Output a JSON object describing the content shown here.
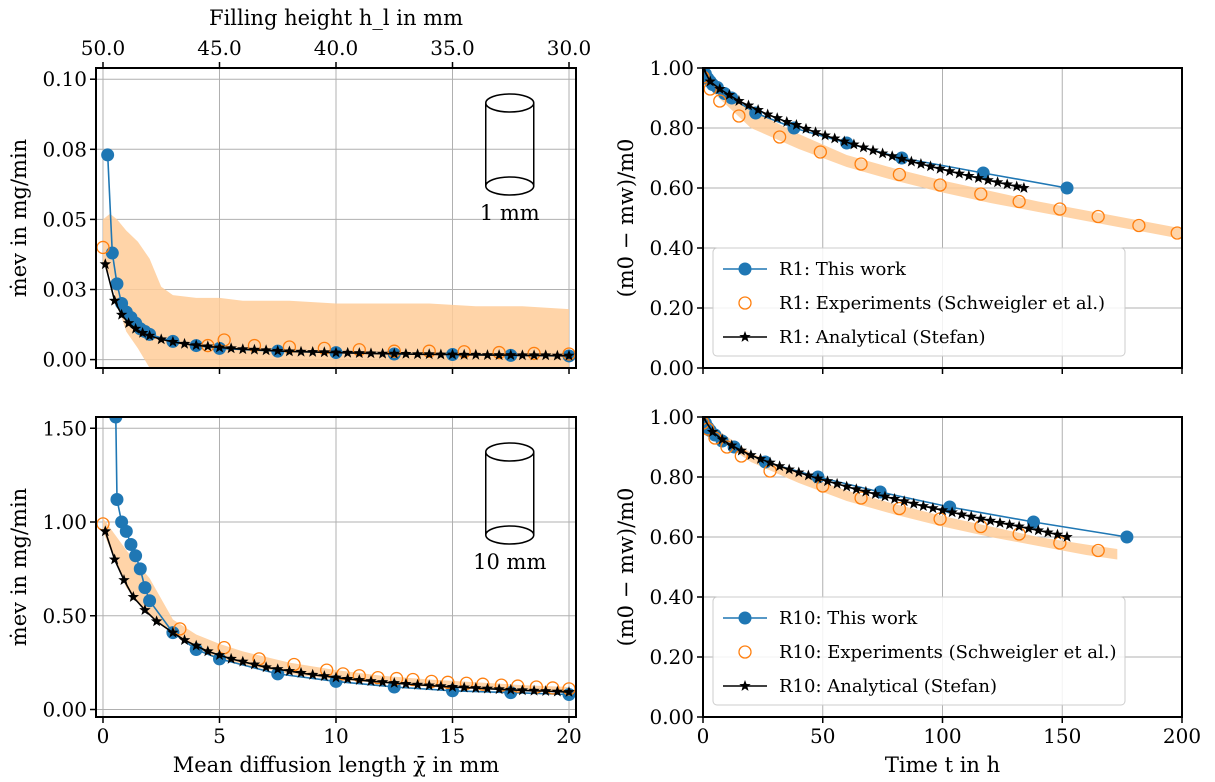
{
  "colors": {
    "this_work": "#1f77b4",
    "experiments": "#ff7f0e",
    "band": "#ffcc99",
    "analytical": "#000000"
  },
  "chart_data": [
    {
      "id": "top-left",
      "type": "line",
      "xlabel": "",
      "ylabel": "ṁev in mg/min",
      "top_axis_label": "Filling height h_l in mm",
      "top_ticks": [
        "50.0",
        "45.0",
        "40.0",
        "35.0",
        "30.0"
      ],
      "top_tick_x": [
        0,
        5,
        10,
        15,
        20
      ],
      "xlim": [
        -0.3,
        20.3
      ],
      "ylim": [
        -0.003,
        0.104
      ],
      "xticks": [
        0,
        5,
        10,
        15,
        20
      ],
      "xtick_labels": [
        "",
        "",
        "",
        "",
        ""
      ],
      "yticks": [
        0,
        0.025,
        0.05,
        0.075,
        0.1
      ],
      "ytick_labels": [
        "0.00",
        "0.03",
        "0.05",
        "0.08",
        "0.10"
      ],
      "inset_label": "1 mm",
      "series": [
        {
          "name": "This work",
          "style": "line-dot",
          "x": [
            0.2,
            0.4,
            0.6,
            0.8,
            1.0,
            1.2,
            1.4,
            1.6,
            1.8,
            2.0,
            3.0,
            4.0,
            5.0,
            7.5,
            10.0,
            12.5,
            15.0,
            17.5,
            20.0
          ],
          "y": [
            0.073,
            0.038,
            0.027,
            0.02,
            0.017,
            0.015,
            0.013,
            0.011,
            0.01,
            0.009,
            0.0065,
            0.005,
            0.004,
            0.003,
            0.0025,
            0.002,
            0.0018,
            0.0015,
            0.0013
          ]
        },
        {
          "name": "Experiments",
          "style": "open-circle",
          "x": [
            0.0,
            4.5,
            5.2,
            6.5,
            8.0,
            9.5,
            11.0,
            12.5,
            14.0,
            15.5,
            17.0,
            18.5,
            20.0
          ],
          "y": [
            0.04,
            0.005,
            0.007,
            0.005,
            0.0045,
            0.004,
            0.0035,
            0.003,
            0.003,
            0.0028,
            0.0025,
            0.0022,
            0.002
          ]
        },
        {
          "name": "Analytical",
          "style": "star",
          "x": [
            0.1,
            0.5,
            0.8,
            1.1,
            1.4,
            1.7,
            2.0,
            2.5,
            3.0,
            3.5,
            4.0,
            4.5,
            5.0,
            5.5,
            6.0,
            6.5,
            7.0,
            7.5,
            8.0,
            8.5,
            9.0,
            9.5,
            10,
            10.5,
            11,
            11.5,
            12,
            12.5,
            13,
            13.5,
            14,
            14.5,
            15,
            15.5,
            16,
            16.5,
            17,
            17.5,
            18,
            18.5,
            19,
            19.5,
            20
          ],
          "y": [
            0.034,
            0.021,
            0.016,
            0.013,
            0.011,
            0.0095,
            0.0085,
            0.0072,
            0.0063,
            0.0056,
            0.0051,
            0.0047,
            0.0043,
            0.004,
            0.0037,
            0.0035,
            0.0033,
            0.0031,
            0.0029,
            0.0028,
            0.0027,
            0.0026,
            0.0025,
            0.0024,
            0.0023,
            0.0022,
            0.0021,
            0.0021,
            0.002,
            0.0019,
            0.0019,
            0.0018,
            0.0018,
            0.0017,
            0.0017,
            0.0016,
            0.0016,
            0.0016,
            0.0015,
            0.0015,
            0.0015,
            0.0014,
            0.0014
          ]
        }
      ],
      "band": {
        "x": [
          0,
          0.3,
          0.6,
          1,
          1.5,
          2,
          2.5,
          3,
          4,
          5,
          6,
          8,
          10,
          12,
          14,
          16,
          18,
          20
        ],
        "lower": [
          0.035,
          0.03,
          0.02,
          0.01,
          0.004,
          -0.003,
          -0.003,
          -0.003,
          -0.003,
          -0.003,
          -0.003,
          -0.003,
          -0.003,
          -0.003,
          -0.003,
          -0.003,
          -0.003,
          -0.003
        ],
        "upper": [
          0.05,
          0.052,
          0.05,
          0.046,
          0.042,
          0.036,
          0.026,
          0.023,
          0.022,
          0.022,
          0.021,
          0.021,
          0.02,
          0.02,
          0.02,
          0.019,
          0.019,
          0.018
        ]
      }
    },
    {
      "id": "top-right",
      "type": "line",
      "xlabel": "",
      "ylabel": "(m0 − mw)/m0",
      "xlim": [
        0,
        200
      ],
      "ylim": [
        0,
        1.0
      ],
      "xticks": [
        0,
        50,
        100,
        150,
        200
      ],
      "xtick_labels": [
        "",
        "",
        "",
        "",
        ""
      ],
      "yticks": [
        0,
        0.2,
        0.4,
        0.6,
        0.8,
        1.0
      ],
      "ytick_labels": [
        "0.00",
        "0.20",
        "0.40",
        "0.60",
        "0.80",
        "1.00"
      ],
      "legend": [
        "R1: This work",
        "R1: Experiments (Schweigler et al.)",
        "R1: Analytical (Stefan)"
      ],
      "legend_position": "lower-left",
      "series": [
        {
          "name": "R1: This work",
          "style": "line-dot",
          "x": [
            0,
            1,
            2,
            3,
            4,
            6,
            9,
            12,
            22,
            38,
            60,
            83,
            117,
            152
          ],
          "y": [
            1.0,
            0.98,
            0.965,
            0.955,
            0.945,
            0.935,
            0.915,
            0.9,
            0.85,
            0.8,
            0.75,
            0.7,
            0.65,
            0.6
          ]
        },
        {
          "name": "R1: Experiments (Schweigler et al.)",
          "style": "open-circle",
          "x": [
            0,
            3,
            7,
            15,
            32,
            49,
            66,
            82,
            99,
            116,
            132,
            149,
            165,
            182,
            198
          ],
          "y": [
            0.97,
            0.93,
            0.89,
            0.84,
            0.77,
            0.72,
            0.68,
            0.645,
            0.61,
            0.58,
            0.555,
            0.53,
            0.505,
            0.475,
            0.45
          ]
        },
        {
          "name": "R1: Analytical (Stefan)",
          "style": "star",
          "x": [
            0,
            3,
            7,
            11,
            15,
            19,
            23,
            27,
            31,
            35,
            39,
            43,
            47,
            51,
            55,
            59,
            63,
            67,
            71,
            75,
            79,
            83,
            87,
            91,
            95,
            99,
            103,
            107,
            111,
            115,
            119,
            123,
            127,
            131,
            134
          ],
          "y": [
            1.0,
            0.955,
            0.93,
            0.91,
            0.89,
            0.875,
            0.86,
            0.845,
            0.833,
            0.82,
            0.81,
            0.797,
            0.786,
            0.775,
            0.765,
            0.755,
            0.745,
            0.735,
            0.725,
            0.715,
            0.706,
            0.697,
            0.688,
            0.68,
            0.672,
            0.664,
            0.656,
            0.648,
            0.64,
            0.633,
            0.626,
            0.619,
            0.612,
            0.605,
            0.6
          ]
        }
      ],
      "band": {
        "x": [
          0,
          20,
          40,
          60,
          80,
          100,
          120,
          140,
          160,
          180,
          200
        ],
        "lower": [
          0.95,
          0.8,
          0.73,
          0.67,
          0.625,
          0.585,
          0.55,
          0.52,
          0.49,
          0.46,
          0.43
        ],
        "upper": [
          0.99,
          0.86,
          0.78,
          0.71,
          0.665,
          0.625,
          0.59,
          0.555,
          0.525,
          0.495,
          0.465
        ]
      }
    },
    {
      "id": "bottom-left",
      "type": "line",
      "xlabel": "Mean diffusion length χ̄ in mm",
      "ylabel": "ṁev in mg/min",
      "xlim": [
        -0.3,
        20.3
      ],
      "ylim": [
        -0.04,
        1.56
      ],
      "xticks": [
        0,
        5,
        10,
        15,
        20
      ],
      "xtick_labels": [
        "0",
        "5",
        "10",
        "15",
        "20"
      ],
      "yticks": [
        0,
        0.5,
        1.0,
        1.5
      ],
      "ytick_labels": [
        "0.00",
        "0.50",
        "1.00",
        "1.50"
      ],
      "inset_label": "10 mm",
      "series": [
        {
          "name": "This work",
          "style": "line-dot",
          "x": [
            0.55,
            0.6,
            0.8,
            1.0,
            1.2,
            1.4,
            1.6,
            1.8,
            2.0,
            3.0,
            4.0,
            5.0,
            7.5,
            10.0,
            12.5,
            15.0,
            17.5,
            20.0
          ],
          "y": [
            1.56,
            1.12,
            1.0,
            0.95,
            0.88,
            0.82,
            0.75,
            0.65,
            0.58,
            0.41,
            0.32,
            0.27,
            0.19,
            0.15,
            0.12,
            0.1,
            0.09,
            0.08
          ]
        },
        {
          "name": "Experiments",
          "style": "open-circle",
          "x": [
            0.0,
            3.3,
            5.2,
            6.7,
            8.2,
            9.6,
            10.3,
            11.0,
            11.8,
            12.6,
            13.3,
            14.1,
            14.8,
            15.6,
            16.3,
            17.1,
            17.8,
            18.6,
            19.3,
            20.0
          ],
          "y": [
            0.99,
            0.43,
            0.33,
            0.27,
            0.24,
            0.21,
            0.19,
            0.18,
            0.17,
            0.165,
            0.16,
            0.15,
            0.145,
            0.14,
            0.135,
            0.13,
            0.125,
            0.12,
            0.115,
            0.11
          ]
        },
        {
          "name": "Analytical",
          "style": "star",
          "x": [
            0.1,
            0.5,
            0.9,
            1.3,
            1.8,
            2.3,
            3.0,
            3.5,
            4.0,
            4.5,
            5.0,
            5.5,
            6.0,
            6.5,
            7.0,
            7.5,
            8.0,
            8.5,
            9,
            9.5,
            10,
            10.5,
            11,
            11.5,
            12,
            12.5,
            13,
            13.5,
            14,
            14.5,
            15,
            15.5,
            16,
            16.5,
            17,
            17.5,
            18,
            18.5,
            19,
            19.5,
            20
          ],
          "y": [
            0.95,
            0.8,
            0.69,
            0.6,
            0.53,
            0.47,
            0.41,
            0.37,
            0.34,
            0.31,
            0.29,
            0.27,
            0.255,
            0.24,
            0.225,
            0.215,
            0.205,
            0.195,
            0.185,
            0.178,
            0.17,
            0.163,
            0.157,
            0.151,
            0.146,
            0.141,
            0.136,
            0.132,
            0.128,
            0.124,
            0.12,
            0.117,
            0.114,
            0.111,
            0.108,
            0.105,
            0.102,
            0.1,
            0.098,
            0.095,
            0.093
          ]
        }
      ],
      "band": {
        "x": [
          0,
          1,
          2,
          3,
          4,
          5,
          6,
          8,
          10,
          12,
          14,
          16,
          18,
          20
        ],
        "lower": [
          0.95,
          0.65,
          0.5,
          0.4,
          0.33,
          0.27,
          0.24,
          0.19,
          0.16,
          0.14,
          0.12,
          0.11,
          0.1,
          0.09
        ],
        "upper": [
          1.02,
          0.85,
          0.7,
          0.48,
          0.4,
          0.35,
          0.31,
          0.25,
          0.21,
          0.18,
          0.16,
          0.145,
          0.13,
          0.12
        ]
      }
    },
    {
      "id": "bottom-right",
      "type": "line",
      "xlabel": "Time t in h",
      "ylabel": "(m0 − mw)/m0",
      "xlim": [
        0,
        200
      ],
      "ylim": [
        0,
        1.0
      ],
      "xticks": [
        0,
        50,
        100,
        150,
        200
      ],
      "xtick_labels": [
        "0",
        "50",
        "100",
        "150",
        "200"
      ],
      "yticks": [
        0,
        0.2,
        0.4,
        0.6,
        0.8,
        1.0
      ],
      "ytick_labels": [
        "0.00",
        "0.20",
        "0.40",
        "0.60",
        "0.80",
        "1.00"
      ],
      "legend": [
        "R10: This work",
        "R10: Experiments (Schweigler et al.)",
        "R10: Analytical (Stefan)"
      ],
      "legend_position": "lower-left",
      "series": [
        {
          "name": "R10: This work",
          "style": "line-dot",
          "x": [
            0,
            1,
            2,
            3,
            5,
            8,
            13,
            26,
            48,
            74,
            103,
            138,
            177
          ],
          "y": [
            1.0,
            0.98,
            0.965,
            0.955,
            0.94,
            0.92,
            0.9,
            0.85,
            0.8,
            0.75,
            0.7,
            0.65,
            0.6
          ]
        },
        {
          "name": "R10: Experiments (Schweigler et al.)",
          "style": "open-circle",
          "x": [
            0,
            2,
            5,
            10,
            16,
            28,
            50,
            66,
            82,
            99,
            116,
            132,
            149,
            165
          ],
          "y": [
            0.98,
            0.96,
            0.93,
            0.9,
            0.87,
            0.82,
            0.77,
            0.73,
            0.695,
            0.66,
            0.635,
            0.61,
            0.58,
            0.555
          ]
        },
        {
          "name": "R10: Analytical (Stefan)",
          "style": "star",
          "x": [
            0,
            4,
            8,
            12,
            16,
            20,
            24,
            28,
            32,
            36,
            40,
            44,
            48,
            52,
            56,
            60,
            64,
            68,
            72,
            76,
            80,
            84,
            88,
            92,
            96,
            100,
            104,
            108,
            112,
            116,
            120,
            124,
            128,
            132,
            136,
            140,
            144,
            148,
            152
          ],
          "y": [
            1.0,
            0.95,
            0.925,
            0.905,
            0.888,
            0.873,
            0.86,
            0.848,
            0.836,
            0.825,
            0.815,
            0.805,
            0.795,
            0.786,
            0.777,
            0.768,
            0.759,
            0.751,
            0.743,
            0.735,
            0.727,
            0.719,
            0.711,
            0.703,
            0.696,
            0.689,
            0.682,
            0.675,
            0.668,
            0.661,
            0.654,
            0.647,
            0.641,
            0.635,
            0.628,
            0.622,
            0.615,
            0.608,
            0.6
          ]
        }
      ],
      "band": {
        "x": [
          0,
          20,
          40,
          60,
          80,
          100,
          120,
          140,
          160,
          173
        ],
        "lower": [
          0.96,
          0.85,
          0.78,
          0.72,
          0.675,
          0.635,
          0.6,
          0.57,
          0.54,
          0.525
        ],
        "upper": [
          0.99,
          0.88,
          0.81,
          0.755,
          0.71,
          0.67,
          0.635,
          0.6,
          0.575,
          0.56
        ]
      }
    }
  ]
}
